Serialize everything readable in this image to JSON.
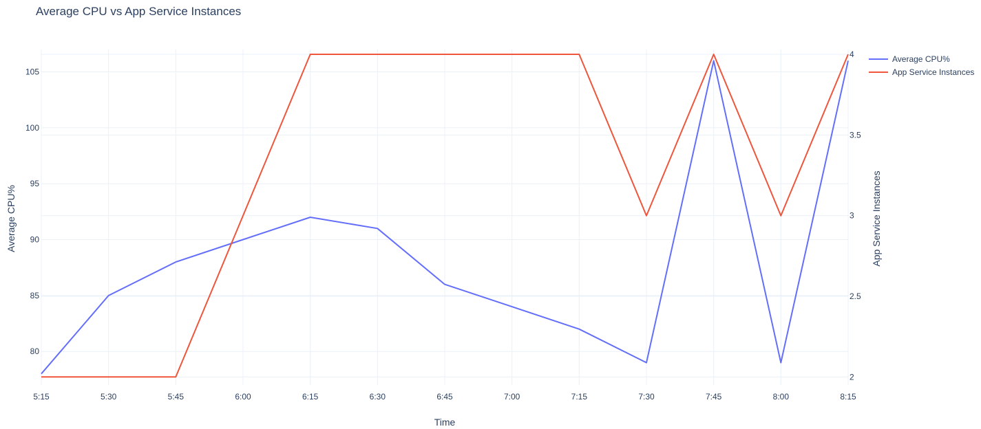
{
  "chart_data": {
    "type": "line",
    "title": "Average CPU vs App Service Instances",
    "xlabel": "Time",
    "x": [
      "5:15",
      "5:30",
      "5:45",
      "6:00",
      "6:15",
      "6:30",
      "6:45",
      "7:00",
      "7:15",
      "7:30",
      "7:45",
      "8:00",
      "8:15"
    ],
    "y_left": {
      "label": "Average CPU%",
      "range": [
        77,
        107
      ],
      "ticks": [
        80,
        85,
        90,
        95,
        100,
        105
      ]
    },
    "y_right": {
      "label": "App Service Instances",
      "range": [
        1.95,
        4.03
      ],
      "ticks": [
        "2",
        "2.5",
        "3",
        "3.5",
        "4"
      ]
    },
    "series": [
      {
        "name": "Average CPU%",
        "axis": "left",
        "color": "#636efa",
        "values": [
          78,
          85,
          88,
          90,
          92,
          91,
          86,
          84,
          82,
          79,
          106,
          79,
          106
        ]
      },
      {
        "name": "App Service Instances",
        "axis": "right",
        "color": "#ef553b",
        "values": [
          2,
          2,
          2,
          3,
          4,
          4,
          4,
          4,
          4,
          3,
          4,
          3,
          4
        ]
      }
    ],
    "grid": true,
    "legend_position": "top-right"
  }
}
